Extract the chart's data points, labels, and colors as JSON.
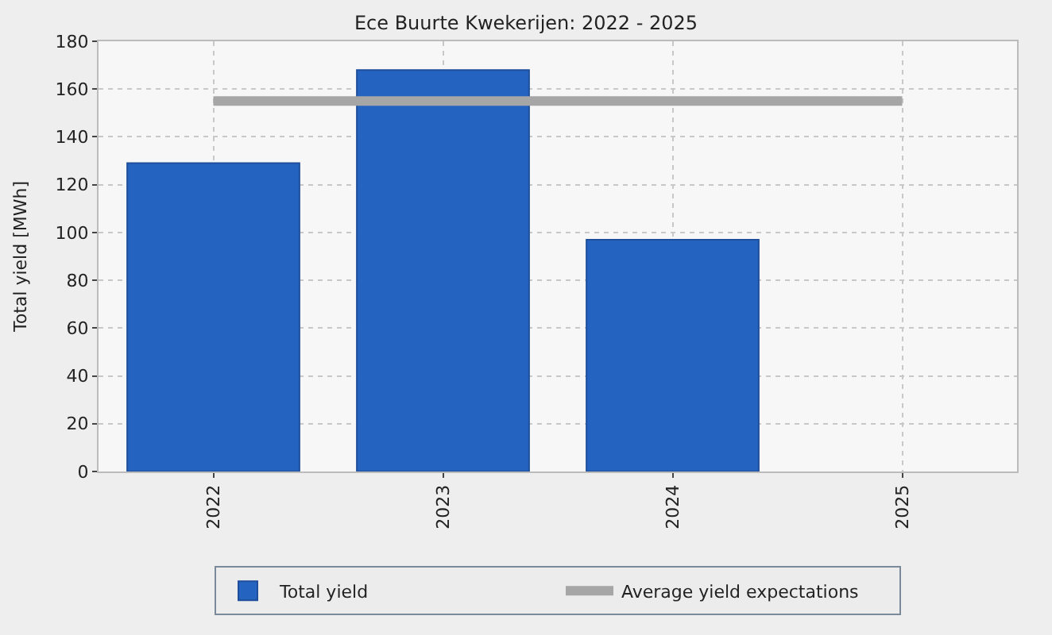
{
  "chart_data": {
    "type": "bar",
    "title": "Ece Buurte Kwekerijen: 2022 - 2025",
    "ylabel": "Total yield [MWh]",
    "categories": [
      "2022",
      "2023",
      "2024",
      "2025"
    ],
    "series": [
      {
        "name": "Total yield",
        "color": "#2563c1",
        "values": [
          129,
          168,
          97,
          null
        ]
      },
      {
        "name": "Average yield expectations",
        "type": "line",
        "color": "#a6a6a6",
        "values": [
          155,
          155,
          155,
          155
        ]
      }
    ],
    "ylim": [
      0,
      180
    ],
    "yticks": [
      0,
      20,
      40,
      60,
      80,
      100,
      120,
      140,
      160,
      180
    ],
    "grid": true,
    "legend": "bottom",
    "marker": "none"
  }
}
